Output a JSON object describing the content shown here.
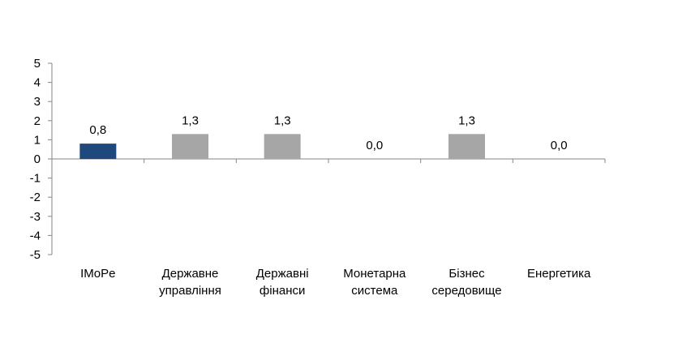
{
  "chart_data": {
    "type": "bar",
    "categories": [
      [
        "IMoPe"
      ],
      [
        "Державне",
        "управління"
      ],
      [
        "Державні",
        "фінанси"
      ],
      [
        "Монетарна",
        "система"
      ],
      [
        "Бізнес",
        "середовище"
      ],
      [
        "Енергетика"
      ]
    ],
    "values": [
      0.8,
      1.3,
      1.3,
      0.0,
      1.3,
      0.0
    ],
    "data_labels": [
      "0,8",
      "1,3",
      "1,3",
      "0,0",
      "1,3",
      "0,0"
    ],
    "bar_colors": [
      "#1f497d",
      "#a6a6a6",
      "#a6a6a6",
      "#a6a6a6",
      "#a6a6a6",
      "#a6a6a6"
    ],
    "ylim": [
      -5,
      5
    ],
    "yticks": [
      5,
      4,
      3,
      2,
      1,
      0,
      -1,
      -2,
      -3,
      -4,
      -5
    ],
    "ytick_labels": [
      "5",
      "4",
      "3",
      "2",
      "1",
      "0",
      "-1",
      "-2",
      "-3",
      "-4",
      "-5"
    ],
    "grid": false,
    "legend": "none",
    "title": "",
    "xlabel": "",
    "ylabel": ""
  }
}
